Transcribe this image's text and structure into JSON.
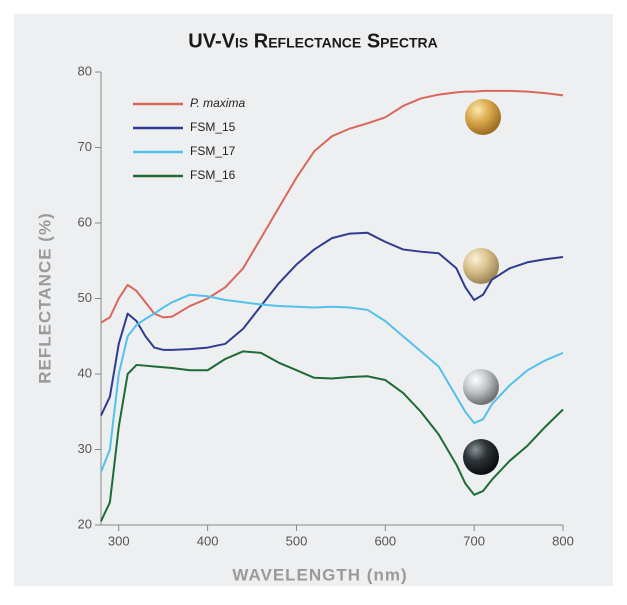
{
  "chart_data": {
    "type": "line",
    "title": "UV-Vis Reflectance Spectra",
    "x_label": "WAVELENGTH (nm)",
    "y_label": "REFLECTANCE (%)",
    "x": [
      280,
      290,
      300,
      310,
      320,
      330,
      340,
      350,
      360,
      380,
      400,
      420,
      440,
      460,
      480,
      500,
      520,
      540,
      560,
      580,
      600,
      620,
      640,
      660,
      680,
      690,
      700,
      710,
      720,
      740,
      760,
      780,
      800
    ],
    "series": [
      {
        "name": "P. maxima",
        "color": "#d9675c",
        "values": [
          46.8,
          47.5,
          50,
          51.8,
          51,
          49.5,
          48,
          47.5,
          47.6,
          49,
          50,
          51.5,
          54,
          58,
          62,
          66,
          69.5,
          71.5,
          72.5,
          73.2,
          74,
          75.5,
          76.5,
          77,
          77.3,
          77.4,
          77.4,
          77.5,
          77.5,
          77.5,
          77.4,
          77.2,
          76.9
        ]
      },
      {
        "name": "FSM_15",
        "color": "#2f3c8f",
        "values": [
          34.5,
          37,
          44,
          48,
          47,
          45,
          43.5,
          43.2,
          43.2,
          43.3,
          43.5,
          44,
          46,
          49,
          52,
          54.5,
          56.5,
          58,
          58.6,
          58.7,
          57.5,
          56.5,
          56.2,
          56,
          54,
          51.5,
          49.8,
          50.5,
          52.5,
          54,
          54.8,
          55.2,
          55.5
        ]
      },
      {
        "name": "FSM_17",
        "color": "#52c1ec",
        "values": [
          27,
          30,
          40,
          45,
          46.5,
          47.3,
          48,
          48.8,
          49.5,
          50.5,
          50.3,
          49.8,
          49.5,
          49.2,
          49,
          48.9,
          48.8,
          48.9,
          48.8,
          48.5,
          47,
          45,
          43,
          41,
          37,
          35,
          33.5,
          34,
          36,
          38.5,
          40.5,
          41.8,
          42.8
        ]
      },
      {
        "name": "FSM_16",
        "color": "#1e6b36",
        "values": [
          20.5,
          23,
          33,
          40,
          41.2,
          41.1,
          41,
          40.9,
          40.8,
          40.5,
          40.5,
          42,
          43,
          42.8,
          41.5,
          40.5,
          39.5,
          39.4,
          39.6,
          39.7,
          39.2,
          37.5,
          35,
          32,
          28,
          25.5,
          24,
          24.5,
          26,
          28.5,
          30.5,
          33,
          35.3
        ]
      }
    ],
    "xlim": [
      280,
      800
    ],
    "ylim": [
      20,
      80
    ],
    "xticks": [
      300,
      400,
      500,
      600,
      700,
      800
    ],
    "yticks": [
      20,
      30,
      40,
      50,
      60,
      70,
      80
    ],
    "legend": "upper left"
  }
}
